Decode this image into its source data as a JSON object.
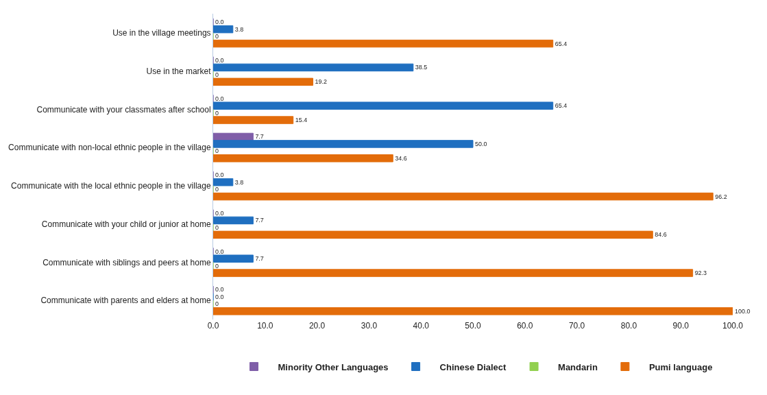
{
  "chart_data": {
    "type": "bar",
    "orientation": "horizontal",
    "categories": [
      "Use in the village meetings",
      "Use in the market",
      "Communicate with your classmates after school",
      "Communicate with non-local ethnic people in the village",
      "Communicate with the local ethnic people in the village",
      "Communicate with your child or junior at home",
      "Communicate with siblings and peers at home",
      "Communicate with parents and elders at home"
    ],
    "series": [
      {
        "name": "Minority Other Languages",
        "color": "#7f5ea8",
        "values": [
          0,
          0,
          0,
          7.7,
          0,
          0,
          0,
          0
        ],
        "value_labels": [
          "0.0",
          "0.0",
          "0.0",
          "7.7",
          "0.0",
          "0.0",
          "0.0",
          "0.0"
        ]
      },
      {
        "name": "Chinese Dialect",
        "color": "#1f6fc0",
        "values": [
          3.8,
          38.5,
          65.4,
          50.0,
          3.8,
          7.7,
          7.7,
          0
        ],
        "value_labels": [
          "3.8",
          "38.5",
          "65.4",
          "50.0",
          "3.8",
          "7.7",
          "7.7",
          "0.0"
        ]
      },
      {
        "name": "Mandarin",
        "color": "#92d050",
        "values": [
          0,
          0,
          0,
          0,
          0,
          0,
          0,
          0
        ],
        "value_labels": [
          "0",
          "0",
          "0",
          "0",
          "0",
          "0",
          "0",
          "0"
        ]
      },
      {
        "name": "Pumi language",
        "color": "#e36c0a",
        "values": [
          65.4,
          19.2,
          15.4,
          34.6,
          96.2,
          84.6,
          92.3,
          100.0
        ],
        "value_labels": [
          "65.4",
          "19.2",
          "15.4",
          "34.6",
          "96.2",
          "84.6",
          "92.3",
          "100.0"
        ]
      }
    ],
    "xlim": [
      0,
      100
    ],
    "xticks": [
      {
        "value": 0,
        "label": "0.0"
      },
      {
        "value": 10,
        "label": "10.0"
      },
      {
        "value": 20,
        "label": "20.0"
      },
      {
        "value": 30,
        "label": "30.0"
      },
      {
        "value": 40,
        "label": "40.0"
      },
      {
        "value": 50,
        "label": "50.0"
      },
      {
        "value": 60,
        "label": "60.0"
      },
      {
        "value": 70,
        "label": "70.0"
      },
      {
        "value": 80,
        "label": "80.0"
      },
      {
        "value": 90,
        "label": "90.0"
      },
      {
        "value": 100,
        "label": "100.0"
      }
    ],
    "legend": "bottom"
  }
}
